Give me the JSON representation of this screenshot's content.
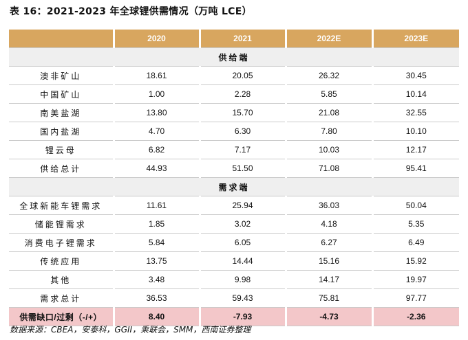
{
  "title": "表 16：2021-2023 年全球锂供需情况（万吨 LCE）",
  "headers": [
    "",
    "2020",
    "2021",
    "2022E",
    "2023E"
  ],
  "supply_section": "供给端",
  "supply_rows": [
    {
      "label": "澳非矿山",
      "values": [
        "18.61",
        "20.05",
        "26.32",
        "30.45"
      ]
    },
    {
      "label": "中国矿山",
      "values": [
        "1.00",
        "2.28",
        "5.85",
        "10.14"
      ]
    },
    {
      "label": "南美盐湖",
      "values": [
        "13.80",
        "15.70",
        "21.08",
        "32.55"
      ]
    },
    {
      "label": "国内盐湖",
      "values": [
        "4.70",
        "6.30",
        "7.80",
        "10.10"
      ]
    },
    {
      "label": "锂云母",
      "values": [
        "6.82",
        "7.17",
        "10.03",
        "12.17"
      ]
    },
    {
      "label": "供给总计",
      "values": [
        "44.93",
        "51.50",
        "71.08",
        "95.41"
      ]
    }
  ],
  "demand_section": "需求端",
  "demand_rows": [
    {
      "label": "全球新能车锂需求",
      "values": [
        "11.61",
        "25.94",
        "36.03",
        "50.04"
      ]
    },
    {
      "label": "储能锂需求",
      "values": [
        "1.85",
        "3.02",
        "4.18",
        "5.35"
      ]
    },
    {
      "label": "消费电子锂需求",
      "values": [
        "5.84",
        "6.05",
        "6.27",
        "6.49"
      ]
    },
    {
      "label": "传统应用",
      "values": [
        "13.75",
        "14.44",
        "15.16",
        "15.92"
      ]
    },
    {
      "label": "其他",
      "values": [
        "3.48",
        "9.98",
        "14.17",
        "19.97"
      ]
    },
    {
      "label": "需求总计",
      "values": [
        "36.53",
        "59.43",
        "75.81",
        "97.77"
      ]
    }
  ],
  "gap_row": {
    "label": "供需缺口/过剩（-/+）",
    "values": [
      "8.40",
      "-7.93",
      "-4.73",
      "-2.36"
    ]
  },
  "source": "数据来源：CBEA，安泰科，GGII，乘联会，SMM，西南证券整理",
  "colors": {
    "header_bg": "#d8a65f",
    "section_bg": "#efefef",
    "gap_bg": "#f3c7c9"
  }
}
